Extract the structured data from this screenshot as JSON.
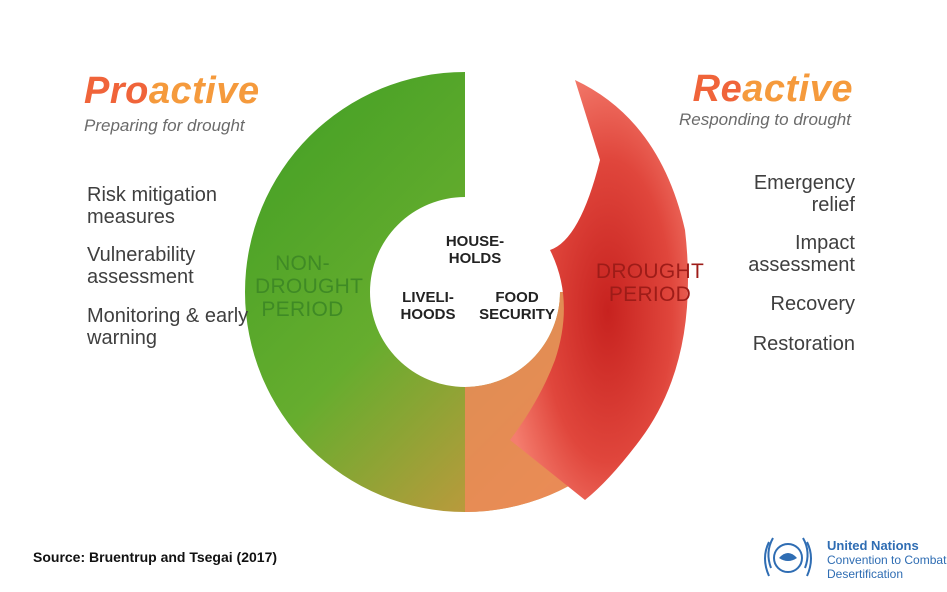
{
  "proactive": {
    "title_initial": "Pro",
    "title_rest": "active",
    "subtitle": "Preparing for drought",
    "items": [
      "Risk mitigation measures",
      "Vulnerability assessment",
      "Monitoring & early warning"
    ]
  },
  "reactive": {
    "title_initial": "Re",
    "title_rest": "active",
    "subtitle": "Responding to drought",
    "items": [
      "Emergency relief",
      "Impact assessment",
      "Recovery",
      "Restoration"
    ]
  },
  "ring": {
    "non_drought_line1": "NON-",
    "non_drought_line2": "DROUGHT",
    "non_drought_line3": "PERIOD",
    "drought_line1": "DROUGHT",
    "drought_line2": "PERIOD"
  },
  "center": {
    "households_line1": "HOUSE-",
    "households_line2": "HOLDS",
    "livelihoods_line1": "LIVELI-",
    "livelihoods_line2": "HOODS",
    "food_line1": "FOOD",
    "food_line2": "SECURITY"
  },
  "source": "Source: Bruentrup and Tsegai (2017)",
  "logo": {
    "line1": "United Nations",
    "line2": "Convention to Combat",
    "line3": "Desertification"
  },
  "colors": {
    "green": "#4aa52a",
    "red": "#d42a26",
    "orange_title": "#f0643a",
    "un_blue": "#2f6db3"
  }
}
